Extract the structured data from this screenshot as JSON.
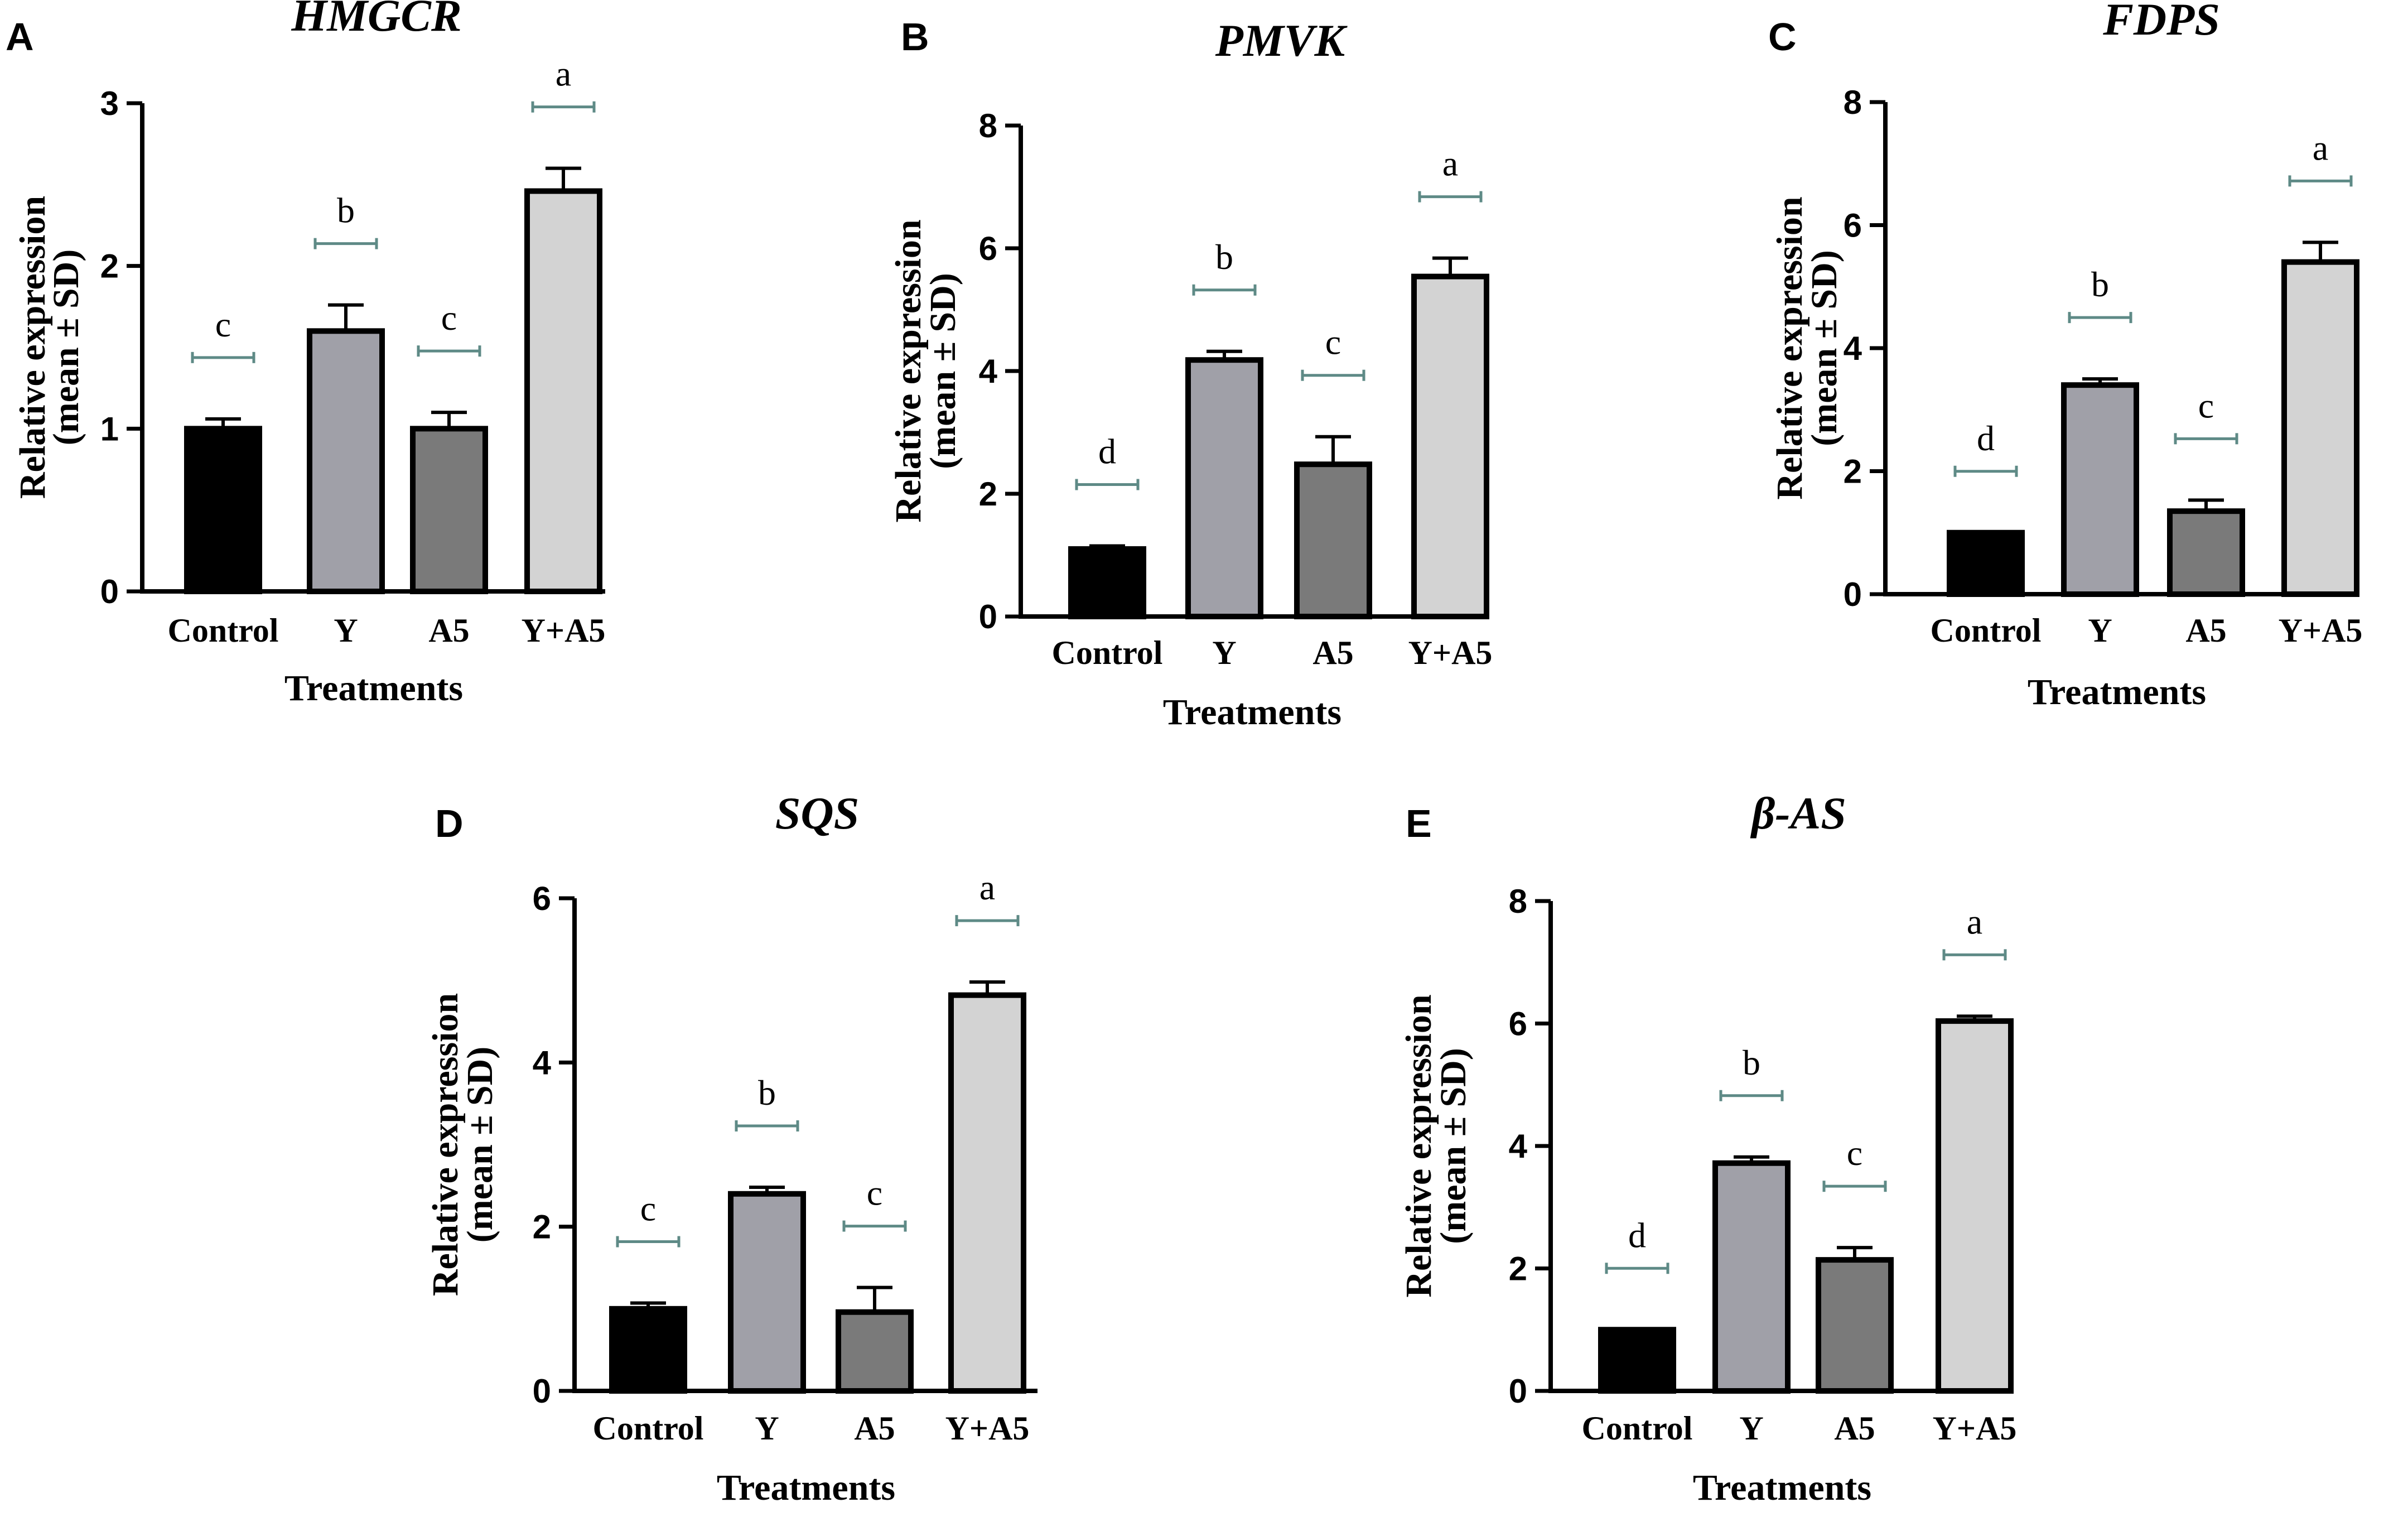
{
  "figure": {
    "chart_data": [
      {
        "type": "bar",
        "panel": "A",
        "title": "HMGCR",
        "xlabel": "Treatments",
        "ylabel": [
          "Relative expression",
          "(mean ± SD)"
        ],
        "categories": [
          "Control",
          "Y",
          "A5",
          "Y+A5"
        ],
        "values": [
          1.0,
          1.6,
          1.0,
          2.46
        ],
        "errors": [
          0.06,
          0.16,
          0.1,
          0.14
        ],
        "significance": [
          "c",
          "b",
          "c",
          "a"
        ],
        "ylim": [
          0,
          3
        ],
        "yticks": [
          0,
          1,
          2,
          3
        ],
        "bar_colors": [
          "#000000",
          "#a0a0a8",
          "#7a7a7a",
          "#d3d3d3"
        ]
      },
      {
        "type": "bar",
        "panel": "B",
        "title": "PMVK",
        "xlabel": "Treatments",
        "ylabel": [
          "Relative expression",
          "(mean ± SD)"
        ],
        "categories": [
          "Control",
          "Y",
          "A5",
          "Y+A5"
        ],
        "values": [
          1.1,
          4.18,
          2.48,
          5.54
        ],
        "errors": [
          0.05,
          0.14,
          0.45,
          0.3
        ],
        "significance": [
          "d",
          "b",
          "c",
          "a"
        ],
        "ylim": [
          0,
          8
        ],
        "yticks": [
          0,
          2,
          4,
          6,
          8
        ],
        "bar_colors": [
          "#000000",
          "#a0a0a8",
          "#7a7a7a",
          "#d3d3d3"
        ]
      },
      {
        "type": "bar",
        "panel": "C",
        "title": "FDPS",
        "xlabel": "Treatments",
        "ylabel": [
          "Relative expression",
          "(mean ± SD)"
        ],
        "categories": [
          "Control",
          "Y",
          "A5",
          "Y+A5"
        ],
        "values": [
          1.0,
          3.4,
          1.35,
          5.4
        ],
        "errors": [
          0.0,
          0.1,
          0.18,
          0.32
        ],
        "significance": [
          "d",
          "b",
          "c",
          "a"
        ],
        "ylim": [
          0,
          8
        ],
        "yticks": [
          0,
          2,
          4,
          6,
          8
        ],
        "bar_colors": [
          "#000000",
          "#a0a0a8",
          "#7a7a7a",
          "#d3d3d3"
        ]
      },
      {
        "type": "bar",
        "panel": "D",
        "title": "SQS",
        "xlabel": "Treatments",
        "ylabel": [
          "Relative expression",
          "(mean ± SD)"
        ],
        "categories": [
          "Control",
          "Y",
          "A5",
          "Y+A5"
        ],
        "values": [
          1.0,
          2.4,
          0.96,
          4.82
        ],
        "errors": [
          0.07,
          0.08,
          0.3,
          0.16
        ],
        "significance": [
          "c",
          "b",
          "c",
          "a"
        ],
        "ylim": [
          0,
          6
        ],
        "yticks": [
          0,
          2,
          4,
          6
        ],
        "bar_colors": [
          "#000000",
          "#a0a0a8",
          "#7a7a7a",
          "#d3d3d3"
        ]
      },
      {
        "type": "bar",
        "panel": "E",
        "title": "β-AS",
        "xlabel": "Treatments",
        "ylabel": [
          "Relative expression",
          "(mean ± SD)"
        ],
        "categories": [
          "Control",
          "Y",
          "A5",
          "Y+A5"
        ],
        "values": [
          1.0,
          3.72,
          2.14,
          6.04
        ],
        "errors": [
          0.0,
          0.1,
          0.2,
          0.08
        ],
        "significance": [
          "d",
          "b",
          "c",
          "a"
        ],
        "ylim": [
          0,
          8
        ],
        "yticks": [
          0,
          2,
          4,
          6,
          8
        ],
        "bar_colors": [
          "#000000",
          "#a0a0a8",
          "#7a7a7a",
          "#d3d3d3"
        ]
      }
    ],
    "sig_line_color": "#5e8a86",
    "axis_color": "#000000"
  }
}
